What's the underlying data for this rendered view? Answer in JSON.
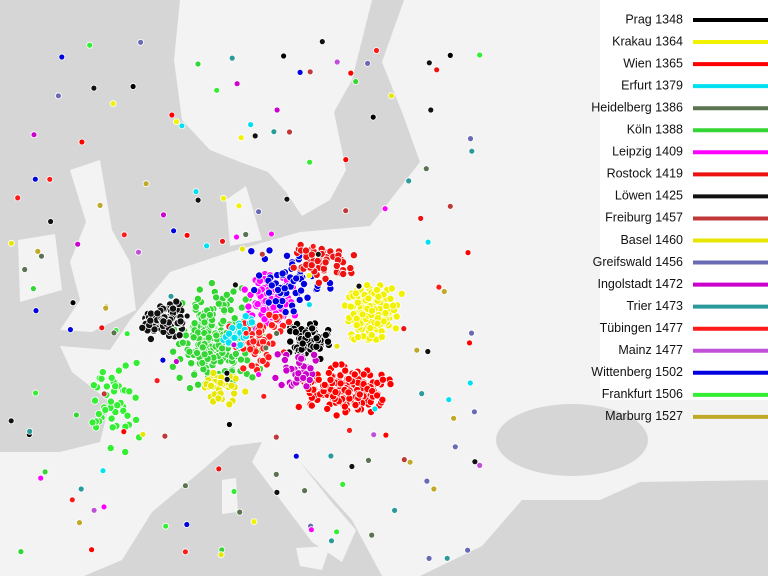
{
  "legend": {
    "items": [
      {
        "label": "Prag 1348",
        "color": "#000000"
      },
      {
        "label": "Krakau 1364",
        "color": "#f2f200"
      },
      {
        "label": "Wien 1365",
        "color": "#ff0000"
      },
      {
        "label": "Erfurt 1379",
        "color": "#00e0f0"
      },
      {
        "label": "Heidelberg 1386",
        "color": "#5a7350"
      },
      {
        "label": "Köln 1388",
        "color": "#33d633"
      },
      {
        "label": "Leipzig 1409",
        "color": "#ff00ff"
      },
      {
        "label": "Rostock 1419",
        "color": "#ee1111"
      },
      {
        "label": "Löwen 1425",
        "color": "#111111"
      },
      {
        "label": "Freiburg 1457",
        "color": "#c03838"
      },
      {
        "label": "Basel 1460",
        "color": "#e6e600"
      },
      {
        "label": "Greifswald 1456",
        "color": "#6a6ab4"
      },
      {
        "label": "Ingolstadt 1472",
        "color": "#cc00cc"
      },
      {
        "label": "Trier 1473",
        "color": "#2a9a9a"
      },
      {
        "label": "Tübingen 1477",
        "color": "#ff1a1a"
      },
      {
        "label": "Mainz 1477",
        "color": "#c050d8"
      },
      {
        "label": "Wittenberg 1502",
        "color": "#0000e0"
      },
      {
        "label": "Frankfurt 1506",
        "color": "#33ee33"
      },
      {
        "label": "Marburg 1527",
        "color": "#c0a828"
      }
    ]
  }
}
